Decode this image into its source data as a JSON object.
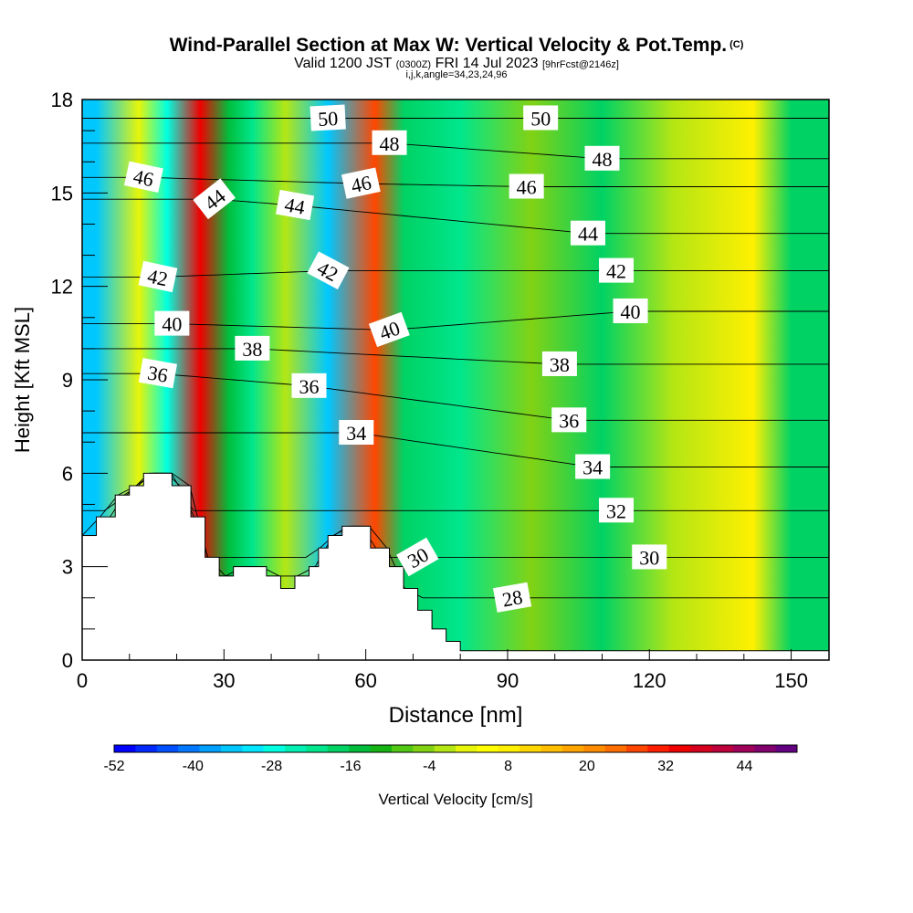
{
  "header": {
    "title": "Wind-Parallel Section at Max W: Vertical Velocity & Pot.Temp.",
    "title_mark": "(C)",
    "valid_prefix": "Valid 1200 JST",
    "valid_utc": "(0300Z)",
    "valid_date": "FRI 14 Jul 2023",
    "forecast": "[9hrFcst@2146z]",
    "indices": "i,j,k,angle=34,23,24,96"
  },
  "chart_data": {
    "type": "heatmap",
    "xlabel": "Distance [nm]",
    "ylabel": "Height [Kft MSL]",
    "xlim": [
      0,
      158
    ],
    "ylim": [
      0,
      18
    ],
    "x_ticks": [
      "0",
      "30",
      "60",
      "90",
      "120",
      "150"
    ],
    "x_tick_values": [
      0,
      30,
      60,
      90,
      120,
      150
    ],
    "y_ticks": [
      "0",
      "3",
      "6",
      "9",
      "12",
      "15",
      "18"
    ],
    "y_tick_values": [
      0,
      3,
      6,
      9,
      12,
      15,
      18
    ],
    "colorbar": {
      "label": "Vertical Velocity [cm/s]",
      "tick_labels": [
        "-52",
        "-40",
        "-28",
        "-16",
        "-4",
        "8",
        "20",
        "32",
        "44"
      ],
      "tick_values": [
        -52,
        -40,
        -28,
        -16,
        -4,
        8,
        20,
        32,
        44
      ],
      "min": -52,
      "max": 52,
      "step": 4,
      "colors": [
        "#0000ff",
        "#0028ff",
        "#0050ff",
        "#0078ff",
        "#00a0ff",
        "#00c8ff",
        "#00e6ff",
        "#00ffe0",
        "#00f0b4",
        "#00e68c",
        "#00d264",
        "#00be3c",
        "#14b414",
        "#50c814",
        "#82d214",
        "#b4e614",
        "#e6f50a",
        "#ffff00",
        "#fff000",
        "#ffd700",
        "#ffbe00",
        "#ffa500",
        "#ff8c00",
        "#ff6e00",
        "#ff4600",
        "#ff1e00",
        "#f00000",
        "#d7001e",
        "#be003c",
        "#a0005a",
        "#82006e",
        "#640082"
      ]
    },
    "velocity_bands": [
      {
        "x": 3,
        "w": -30
      },
      {
        "x": 12,
        "w": 12
      },
      {
        "x": 18,
        "w": -24
      },
      {
        "x": 25,
        "w": 52
      },
      {
        "x": 31,
        "w": -8
      },
      {
        "x": 36,
        "w": -14
      },
      {
        "x": 43,
        "w": 10
      },
      {
        "x": 52,
        "w": -30
      },
      {
        "x": 62,
        "w": 44
      },
      {
        "x": 68,
        "w": -10
      },
      {
        "x": 80,
        "w": -16
      },
      {
        "x": 95,
        "w": 6
      },
      {
        "x": 110,
        "w": -10
      },
      {
        "x": 125,
        "w": 10
      },
      {
        "x": 142,
        "w": 20
      },
      {
        "x": 150,
        "w": -12
      }
    ],
    "isentrope_labels": [
      {
        "text": "50",
        "x": 52,
        "y": 17.4,
        "angle": -3
      },
      {
        "text": "50",
        "x": 97,
        "y": 17.4,
        "angle": 0
      },
      {
        "text": "48",
        "x": 65,
        "y": 16.6,
        "angle": 0
      },
      {
        "text": "48",
        "x": 110,
        "y": 16.1,
        "angle": 0
      },
      {
        "text": "46",
        "x": 13,
        "y": 15.5,
        "angle": 12
      },
      {
        "text": "46",
        "x": 59,
        "y": 15.3,
        "angle": -12
      },
      {
        "text": "46",
        "x": 94,
        "y": 15.2,
        "angle": 0
      },
      {
        "text": "44",
        "x": 28,
        "y": 14.8,
        "angle": -38
      },
      {
        "text": "44",
        "x": 45,
        "y": 14.6,
        "angle": 10
      },
      {
        "text": "44",
        "x": 107,
        "y": 13.7,
        "angle": 0
      },
      {
        "text": "42",
        "x": 16,
        "y": 12.3,
        "angle": 12
      },
      {
        "text": "42",
        "x": 52,
        "y": 12.5,
        "angle": 28
      },
      {
        "text": "42",
        "x": 113,
        "y": 12.5,
        "angle": 0
      },
      {
        "text": "40",
        "x": 19,
        "y": 10.8,
        "angle": 0
      },
      {
        "text": "40",
        "x": 65,
        "y": 10.6,
        "angle": -20
      },
      {
        "text": "40",
        "x": 116,
        "y": 11.2,
        "angle": 0
      },
      {
        "text": "38",
        "x": 36,
        "y": 10.0,
        "angle": 0
      },
      {
        "text": "38",
        "x": 101,
        "y": 9.5,
        "angle": 0
      },
      {
        "text": "36",
        "x": 16,
        "y": 9.2,
        "angle": 10
      },
      {
        "text": "36",
        "x": 48,
        "y": 8.8,
        "angle": 0
      },
      {
        "text": "36",
        "x": 103,
        "y": 7.7,
        "angle": 0
      },
      {
        "text": "34",
        "x": 58,
        "y": 7.3,
        "angle": 0
      },
      {
        "text": "34",
        "x": 108,
        "y": 6.2,
        "angle": 0
      },
      {
        "text": "32",
        "x": 113,
        "y": 4.8,
        "angle": 0
      },
      {
        "text": "30",
        "x": 71,
        "y": 3.3,
        "angle": -30
      },
      {
        "text": "30",
        "x": 120,
        "y": 3.3,
        "angle": 0
      },
      {
        "text": "28",
        "x": 91,
        "y": 2.0,
        "angle": -10
      }
    ],
    "terrain": [
      [
        0,
        4.0
      ],
      [
        3,
        4.0
      ],
      [
        3,
        4.6
      ],
      [
        7,
        4.6
      ],
      [
        7,
        5.3
      ],
      [
        10,
        5.3
      ],
      [
        10,
        5.6
      ],
      [
        13,
        5.6
      ],
      [
        13,
        6.0
      ],
      [
        19,
        6.0
      ],
      [
        19,
        5.6
      ],
      [
        23,
        5.6
      ],
      [
        23,
        4.6
      ],
      [
        26,
        4.6
      ],
      [
        26,
        3.3
      ],
      [
        29,
        3.3
      ],
      [
        29,
        2.7
      ],
      [
        32,
        2.7
      ],
      [
        32,
        3.0
      ],
      [
        39,
        3.0
      ],
      [
        39,
        2.7
      ],
      [
        42,
        2.7
      ],
      [
        42,
        2.3
      ],
      [
        45,
        2.3
      ],
      [
        45,
        2.7
      ],
      [
        48,
        2.7
      ],
      [
        48,
        3.0
      ],
      [
        50,
        3.0
      ],
      [
        50,
        3.6
      ],
      [
        52,
        3.6
      ],
      [
        52,
        4.0
      ],
      [
        55,
        4.0
      ],
      [
        55,
        4.3
      ],
      [
        61,
        4.3
      ],
      [
        61,
        3.6
      ],
      [
        65,
        3.6
      ],
      [
        65,
        3.0
      ],
      [
        68,
        3.0
      ],
      [
        68,
        2.3
      ],
      [
        71,
        2.3
      ],
      [
        71,
        1.6
      ],
      [
        74,
        1.6
      ],
      [
        74,
        1.0
      ],
      [
        77,
        1.0
      ],
      [
        77,
        0.6
      ],
      [
        80,
        0.6
      ],
      [
        80,
        0.3
      ],
      [
        158,
        0.3
      ]
    ]
  }
}
